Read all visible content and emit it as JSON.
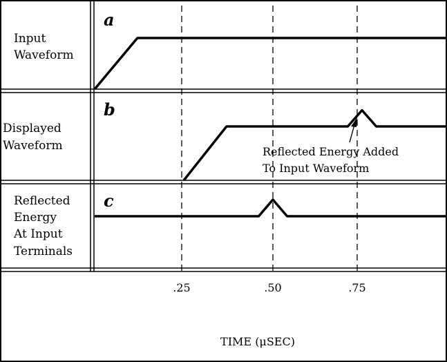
{
  "panels": [
    {
      "letter": "a",
      "label_lines": [
        "Input",
        "Waveform"
      ]
    },
    {
      "letter": "b",
      "label_lines": [
        "Displayed",
        "Waveform"
      ]
    },
    {
      "letter": "c",
      "label_lines": [
        "Reflected",
        "Energy",
        "At Input",
        "Terminals"
      ]
    }
  ],
  "annotation": [
    "Reflected Energy Added",
    "To Input Waveform"
  ],
  "chart_data": {
    "type": "line",
    "xlabel": "TIME (μSEC)",
    "ticks": [
      ".25",
      ".50",
      ".75"
    ],
    "tick_values": [
      0.25,
      0.5,
      0.75
    ],
    "xlim": [
      0,
      1.0
    ],
    "ylim": [
      0,
      1
    ],
    "series": [
      {
        "panel": "a",
        "x": [
          0,
          0.12,
          1.0
        ],
        "y": [
          0,
          1,
          1
        ]
      },
      {
        "panel": "b",
        "x": [
          0.25,
          0.37,
          0.71,
          0.75,
          0.79,
          1.0
        ],
        "y": [
          0,
          1,
          1,
          1.3,
          1,
          1
        ]
      },
      {
        "panel": "c",
        "x": [
          0,
          0.46,
          0.5,
          0.54,
          1.0
        ],
        "y": [
          0,
          0,
          0.3,
          0,
          0
        ]
      }
    ]
  }
}
